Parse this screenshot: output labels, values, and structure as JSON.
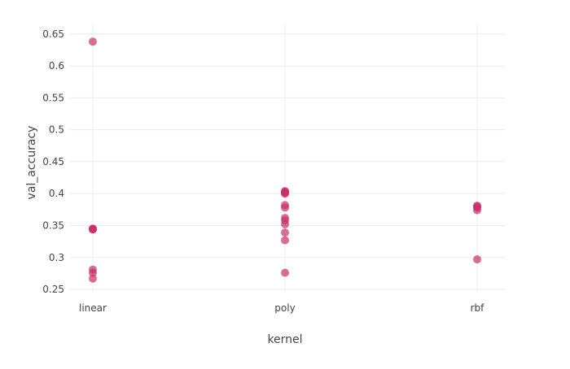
{
  "chart_data": {
    "type": "scatter",
    "xlabel": "kernel",
    "ylabel": "val_accuracy",
    "categories": [
      "linear",
      "poly",
      "rbf"
    ],
    "ylim": [
      0.245,
      0.665
    ],
    "yticks": [
      0.25,
      0.3,
      0.35,
      0.4,
      0.45,
      0.5,
      0.55,
      0.6,
      0.65
    ],
    "ytick_labels": [
      "0.25",
      "0.3",
      "0.35",
      "0.4",
      "0.45",
      "0.5",
      "0.55",
      "0.6",
      "0.65"
    ],
    "grid": true,
    "marker_color": "#c7306b",
    "marker_opacity": 0.7,
    "points": [
      {
        "x": "linear",
        "y": 0.638
      },
      {
        "x": "linear",
        "y": 0.345
      },
      {
        "x": "linear",
        "y": 0.345
      },
      {
        "x": "linear",
        "y": 0.344
      },
      {
        "x": "linear",
        "y": 0.344
      },
      {
        "x": "linear",
        "y": 0.281
      },
      {
        "x": "linear",
        "y": 0.276
      },
      {
        "x": "linear",
        "y": 0.267
      },
      {
        "x": "poly",
        "y": 0.404
      },
      {
        "x": "poly",
        "y": 0.403
      },
      {
        "x": "poly",
        "y": 0.402
      },
      {
        "x": "poly",
        "y": 0.401
      },
      {
        "x": "poly",
        "y": 0.4
      },
      {
        "x": "poly",
        "y": 0.382
      },
      {
        "x": "poly",
        "y": 0.378
      },
      {
        "x": "poly",
        "y": 0.362
      },
      {
        "x": "poly",
        "y": 0.358
      },
      {
        "x": "poly",
        "y": 0.352
      },
      {
        "x": "poly",
        "y": 0.339
      },
      {
        "x": "poly",
        "y": 0.327
      },
      {
        "x": "poly",
        "y": 0.276
      },
      {
        "x": "rbf",
        "y": 0.381
      },
      {
        "x": "rbf",
        "y": 0.38
      },
      {
        "x": "rbf",
        "y": 0.378
      },
      {
        "x": "rbf",
        "y": 0.374
      },
      {
        "x": "rbf",
        "y": 0.297
      }
    ]
  }
}
